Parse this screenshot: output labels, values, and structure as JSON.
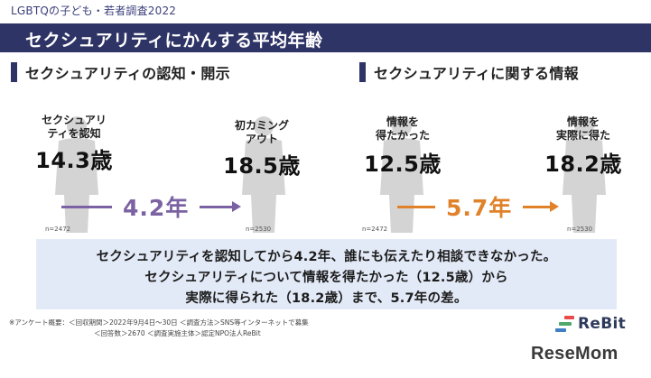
{
  "survey_title": "LGBTQの子ども・若者調査2022",
  "title": "セクシュアリティにかんする平均年齢",
  "sections": {
    "left": {
      "heading": "セクシュアリティの認知・開示",
      "person_a": {
        "label_line1": "セクシュアリ",
        "label_line2": "ティを認知",
        "value": "14.3歳",
        "n": "n=2472"
      },
      "person_b": {
        "label_line1": "初カミング",
        "label_line2": "アウト",
        "value": "18.5歳",
        "n": "n=2530"
      },
      "gap": "4.2年",
      "gap_color": "#7b62a3"
    },
    "right": {
      "heading": "セクシュアリティに関する情報",
      "person_a": {
        "label_line1": "情報を",
        "label_line2": "得たかった",
        "value": "12.5歳",
        "n": "n=2472"
      },
      "person_b": {
        "label_line1": "情報を",
        "label_line2": "実際に得た",
        "value": "18.2歳",
        "n": "n=2530"
      },
      "gap": "5.7年",
      "gap_color": "#e0822a"
    }
  },
  "summary": {
    "line1": "セクシュアリティを認知してから4.2年、誰にも伝えたり相談できなかった。",
    "line2": "セクシュアリティについて情報を得たかった（12.5歳）から",
    "line3": "実際に得られた（18.2歳）まで、5.7年の差。"
  },
  "footnote": {
    "line1": "※アンケート概要：＜回収期間＞2022年9月4日～30日 ＜調査方法＞SNS等インターネットで募集",
    "line2": "＜回答数＞2670 ＜調査実施主体＞認定NPO法人ReBit"
  },
  "logos": {
    "rebit": "ReBit",
    "resemom": "ReseMom"
  },
  "colors": {
    "title_bar": "#2f3466",
    "summary_bg": "#e3eaf7",
    "person": "#d4d4d4"
  }
}
